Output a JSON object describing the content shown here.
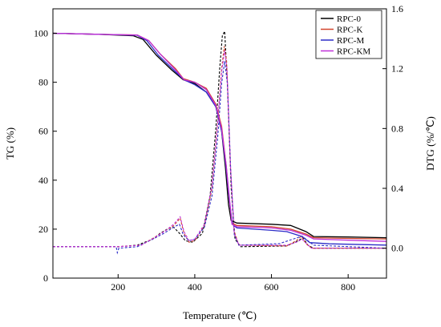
{
  "chart_data": {
    "type": "line",
    "xlabel": "Temperature (℃)",
    "ylabel_left": "TG (%)",
    "ylabel_right": "DTG (%/℃)",
    "xlim": [
      30,
      900
    ],
    "ylim_left": [
      0,
      110
    ],
    "ylim_right": [
      -0.2,
      1.6
    ],
    "x_ticks": [
      200,
      400,
      600,
      800
    ],
    "y_left_ticks": [
      0,
      20,
      40,
      60,
      80,
      100
    ],
    "y_right_ticks": [
      0.0,
      0.4,
      0.8,
      1.2,
      1.6
    ],
    "legend_position": "top-right",
    "series": [
      {
        "name": "RPC-0",
        "color": "#000000",
        "tg": [
          [
            30,
            100
          ],
          [
            150,
            99.6
          ],
          [
            240,
            99
          ],
          [
            265,
            97.5
          ],
          [
            300,
            91
          ],
          [
            340,
            85
          ],
          [
            370,
            81
          ],
          [
            400,
            79.5
          ],
          [
            430,
            76
          ],
          [
            455,
            70
          ],
          [
            470,
            60
          ],
          [
            480,
            45
          ],
          [
            488,
            30
          ],
          [
            495,
            23.5
          ],
          [
            510,
            22.5
          ],
          [
            600,
            22
          ],
          [
            650,
            21.5
          ],
          [
            690,
            19
          ],
          [
            710,
            17
          ],
          [
            800,
            16.8
          ],
          [
            900,
            16.5
          ]
        ],
        "dtg": [
          [
            30,
            0.01
          ],
          [
            200,
            0.01
          ],
          [
            250,
            0.02
          ],
          [
            290,
            0.06
          ],
          [
            310,
            0.1
          ],
          [
            330,
            0.13
          ],
          [
            345,
            0.14
          ],
          [
            360,
            0.1
          ],
          [
            375,
            0.05
          ],
          [
            395,
            0.04
          ],
          [
            420,
            0.1
          ],
          [
            440,
            0.35
          ],
          [
            455,
            0.8
          ],
          [
            465,
            1.2
          ],
          [
            472,
            1.42
          ],
          [
            478,
            1.45
          ],
          [
            485,
            1.1
          ],
          [
            495,
            0.4
          ],
          [
            505,
            0.06
          ],
          [
            520,
            0.01
          ],
          [
            640,
            0.015
          ],
          [
            670,
            0.05
          ],
          [
            682,
            0.07
          ],
          [
            695,
            0.02
          ],
          [
            710,
            0.0
          ],
          [
            900,
            0.0
          ]
        ]
      },
      {
        "name": "RPC-K",
        "color": "#d2452c",
        "tg": [
          [
            30,
            100
          ],
          [
            150,
            99.6
          ],
          [
            250,
            99.3
          ],
          [
            280,
            97
          ],
          [
            310,
            91.5
          ],
          [
            350,
            85.5
          ],
          [
            370,
            81.5
          ],
          [
            400,
            80
          ],
          [
            430,
            77.5
          ],
          [
            455,
            71
          ],
          [
            470,
            62
          ],
          [
            482,
            46
          ],
          [
            490,
            32
          ],
          [
            497,
            22.5
          ],
          [
            510,
            21.5
          ],
          [
            600,
            21
          ],
          [
            650,
            20
          ],
          [
            690,
            18
          ],
          [
            710,
            16.5
          ],
          [
            800,
            16.2
          ],
          [
            900,
            16
          ]
        ],
        "dtg": [
          [
            30,
            0.01
          ],
          [
            200,
            0.01
          ],
          [
            260,
            0.02
          ],
          [
            300,
            0.08
          ],
          [
            325,
            0.12
          ],
          [
            345,
            0.15
          ],
          [
            362,
            0.2
          ],
          [
            372,
            0.1
          ],
          [
            385,
            0.04
          ],
          [
            400,
            0.05
          ],
          [
            425,
            0.15
          ],
          [
            445,
            0.4
          ],
          [
            460,
            0.85
          ],
          [
            470,
            1.2
          ],
          [
            477,
            1.35
          ],
          [
            483,
            1.25
          ],
          [
            492,
            0.6
          ],
          [
            502,
            0.12
          ],
          [
            515,
            0.02
          ],
          [
            640,
            0.015
          ],
          [
            665,
            0.05
          ],
          [
            678,
            0.08
          ],
          [
            690,
            0.03
          ],
          [
            705,
            0.0
          ],
          [
            900,
            0.0
          ]
        ]
      },
      {
        "name": "RPC-M",
        "color": "#2c2cc8",
        "tg": [
          [
            30,
            100
          ],
          [
            150,
            99.6
          ],
          [
            250,
            99.2
          ],
          [
            275,
            97
          ],
          [
            305,
            91
          ],
          [
            345,
            85
          ],
          [
            372,
            81
          ],
          [
            400,
            79
          ],
          [
            430,
            76
          ],
          [
            455,
            70
          ],
          [
            470,
            60
          ],
          [
            482,
            45
          ],
          [
            490,
            32
          ],
          [
            498,
            22
          ],
          [
            510,
            20.5
          ],
          [
            600,
            19.5
          ],
          [
            640,
            19
          ],
          [
            680,
            17
          ],
          [
            700,
            14.5
          ],
          [
            750,
            14
          ],
          [
            900,
            13.5
          ]
        ],
        "dtg": [
          [
            30,
            0.01
          ],
          [
            195,
            0.01
          ],
          [
            198,
            -0.03
          ],
          [
            202,
            0.0
          ],
          [
            250,
            0.01
          ],
          [
            290,
            0.06
          ],
          [
            320,
            0.1
          ],
          [
            345,
            0.14
          ],
          [
            360,
            0.16
          ],
          [
            370,
            0.09
          ],
          [
            385,
            0.05
          ],
          [
            400,
            0.06
          ],
          [
            425,
            0.14
          ],
          [
            445,
            0.35
          ],
          [
            460,
            0.75
          ],
          [
            470,
            1.1
          ],
          [
            478,
            1.25
          ],
          [
            485,
            1.1
          ],
          [
            494,
            0.5
          ],
          [
            503,
            0.09
          ],
          [
            515,
            0.02
          ],
          [
            620,
            0.03
          ],
          [
            655,
            0.06
          ],
          [
            680,
            0.08
          ],
          [
            695,
            0.05
          ],
          [
            710,
            0.02
          ],
          [
            900,
            0.0
          ]
        ]
      },
      {
        "name": "RPC-KM",
        "color": "#c030d8",
        "tg": [
          [
            30,
            100
          ],
          [
            150,
            99.6
          ],
          [
            250,
            99.3
          ],
          [
            280,
            97
          ],
          [
            310,
            91.5
          ],
          [
            350,
            85
          ],
          [
            372,
            81
          ],
          [
            400,
            80
          ],
          [
            430,
            77
          ],
          [
            455,
            70.5
          ],
          [
            470,
            61
          ],
          [
            482,
            46
          ],
          [
            490,
            33
          ],
          [
            497,
            22
          ],
          [
            510,
            21
          ],
          [
            600,
            20.5
          ],
          [
            650,
            19.5
          ],
          [
            690,
            17.5
          ],
          [
            710,
            16
          ],
          [
            800,
            15.5
          ],
          [
            900,
            15
          ]
        ],
        "dtg": [
          [
            30,
            0.01
          ],
          [
            200,
            0.01
          ],
          [
            260,
            0.02
          ],
          [
            295,
            0.07
          ],
          [
            325,
            0.12
          ],
          [
            345,
            0.16
          ],
          [
            362,
            0.21
          ],
          [
            372,
            0.11
          ],
          [
            385,
            0.05
          ],
          [
            400,
            0.06
          ],
          [
            425,
            0.16
          ],
          [
            445,
            0.42
          ],
          [
            460,
            0.85
          ],
          [
            470,
            1.18
          ],
          [
            478,
            1.32
          ],
          [
            484,
            1.2
          ],
          [
            493,
            0.55
          ],
          [
            503,
            0.1
          ],
          [
            515,
            0.02
          ],
          [
            640,
            0.02
          ],
          [
            665,
            0.04
          ],
          [
            680,
            0.06
          ],
          [
            692,
            0.03
          ],
          [
            705,
            0.0
          ],
          [
            900,
            0.0
          ]
        ]
      }
    ]
  }
}
